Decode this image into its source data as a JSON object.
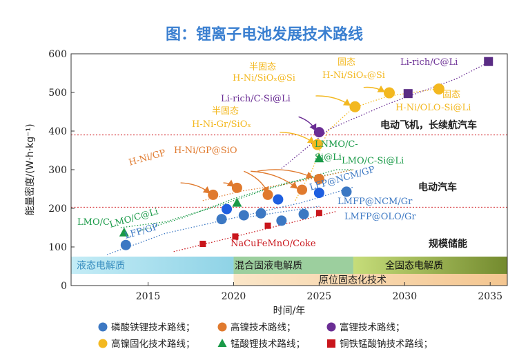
{
  "chart_data": {
    "type": "scatter",
    "title": "图：锂离子电池发展技术路线",
    "xlabel": "时间/年",
    "ylabel": "能量密度/(W·h·kg⁻¹)",
    "xlim": [
      2010.5,
      2036
    ],
    "ylim": [
      0,
      600
    ],
    "xticks": [
      2015,
      2020,
      2025,
      2030,
      2035
    ],
    "yticks": [
      0,
      100,
      200,
      300,
      400,
      500,
      600
    ],
    "grid": false,
    "reference_lines": [
      {
        "y": 390,
        "label": "电动飞机，长续航汽车"
      },
      {
        "y": 203,
        "label": "电动汽车"
      }
    ],
    "application_labels": [
      {
        "label": "电动飞机，长续航汽车"
      },
      {
        "label": "电动汽车"
      },
      {
        "label": "规模储能"
      }
    ],
    "series": [
      {
        "name": "磷酸铁锂技术路线",
        "marker": "circle",
        "color": "#3c78c3",
        "points": [
          [
            2013.7,
            105
          ],
          [
            2019.3,
            172
          ],
          [
            2020.6,
            182
          ],
          [
            2021.6,
            187
          ],
          [
            2022.8,
            168
          ],
          [
            2024.1,
            185
          ],
          [
            2026.6,
            243
          ]
        ]
      },
      {
        "name": "高镍技术路线",
        "marker": "circle",
        "color": "#e07a2e",
        "points": [
          [
            2018.8,
            235
          ],
          [
            2020.2,
            253
          ],
          [
            2022.0,
            235
          ],
          [
            2024.0,
            248
          ],
          [
            2025.0,
            276
          ]
        ]
      },
      {
        "name": "富锂技术路线",
        "marker": "circle",
        "color": "#6a2d94",
        "points": [
          [
            2025.0,
            397
          ]
        ]
      },
      {
        "name": "高镍固化技术路线",
        "marker": "circle",
        "color": "#f3b820",
        "points": [
          [
            2024.9,
            365
          ],
          [
            2027.1,
            463
          ],
          [
            2029.1,
            499
          ],
          [
            2032.0,
            509
          ]
        ]
      },
      {
        "name": "锰酸锂技术路线",
        "marker": "triangle",
        "color": "#1a9a48",
        "points": [
          [
            2013.6,
            138
          ],
          [
            2020.2,
            215
          ],
          [
            2025.0,
            330
          ]
        ]
      },
      {
        "name": "铜铁锰酸钠技术路线",
        "marker": "square",
        "color": "#c9161c",
        "points": [
          [
            2018.2,
            108
          ],
          [
            2020.1,
            127
          ],
          [
            2022.0,
            155
          ],
          [
            2025.0,
            188
          ]
        ]
      },
      {
        "name": "富锂（方块）",
        "marker": "square",
        "color": "#5a2c84",
        "points": [
          [
            2030.2,
            497
          ],
          [
            2034.9,
            580
          ]
        ]
      },
      {
        "name": "磷酸铁锂（高亮）",
        "marker": "circle",
        "color": "#1e5fe0",
        "points": [
          [
            2019.6,
            198
          ],
          [
            2022.6,
            223
          ],
          [
            2025.0,
            240
          ]
        ]
      }
    ],
    "annotations": [
      {
        "text": "LMO/C",
        "color": "#1a9a48"
      },
      {
        "text": "LMO/C@Li",
        "color": "#1a9a48"
      },
      {
        "text": "LFP/GP",
        "color": "#3c78c3"
      },
      {
        "text": "H-Ni/GP",
        "color": "#e07a2e"
      },
      {
        "text": "H-Ni/GP@SiO",
        "color": "#e07a2e"
      },
      {
        "text": "半固态",
        "color": "#f3b820"
      },
      {
        "text": "H-Ni-Gr/SiOₓ",
        "color": "#f3b820"
      },
      {
        "text": "Li-rich/C-Si@Li",
        "color": "#6a2d94"
      },
      {
        "text": "半固态",
        "color": "#f3b820"
      },
      {
        "text": "H-Ni/SiOₓ@Si",
        "color": "#f3b820"
      },
      {
        "text": "固态",
        "color": "#f3b820"
      },
      {
        "text": "H-Ni/SiOₓ@Si",
        "color": "#f3b820"
      },
      {
        "text": "Li-rich/C@Li",
        "color": "#6a2d94"
      },
      {
        "text": "固态",
        "color": "#f3b820"
      },
      {
        "text": "H-Ni/OLO-Si@Li",
        "color": "#f3b820"
      },
      {
        "text": "LNMO/C-",
        "color": "#1a9a48"
      },
      {
        "text": "Si@Li",
        "color": "#1a9a48"
      },
      {
        "text": "LMO/C-Si@Li",
        "color": "#1a9a48"
      },
      {
        "text": "LFP@NCM/GP",
        "color": "#3c78c3"
      },
      {
        "text": "LMFP@NCM/Gr",
        "color": "#3c78c3"
      },
      {
        "text": "LMFP@OLO/Gr",
        "color": "#3c78c3"
      },
      {
        "text": "NaCuFeMnO/Coke",
        "color": "#c9161c"
      }
    ],
    "bands": [
      {
        "label": "液态电解质",
        "from": 2010.5,
        "to": 2020.0,
        "color": "#a8dcea"
      },
      {
        "label": "混合固液电解质",
        "from": 2020.0,
        "to": 2027.0,
        "color": "#9ccf9e"
      },
      {
        "label": "全固态电解质",
        "from": 2027.0,
        "to": 2036.0,
        "color": "#90a83f"
      },
      {
        "label": "原位固态化技术",
        "from": 2020.0,
        "to": 2036.0,
        "color": "#f7dcb4"
      }
    ],
    "legend": {
      "placement": "bottom",
      "items": [
        {
          "label": "磷酸铁锂技术路线；",
          "marker": "circle",
          "color": "#3c78c3"
        },
        {
          "label": "高镍技术路线；",
          "marker": "circle",
          "color": "#e07a2e"
        },
        {
          "label": "富锂技术路线；",
          "marker": "circle",
          "color": "#6a2d94"
        },
        {
          "label": "高镍固化技术路线；",
          "marker": "circle",
          "color": "#f3b820"
        },
        {
          "label": "锰酸锂技术路线；",
          "marker": "triangle",
          "color": "#1a9a48"
        },
        {
          "label": "铜铁锰酸钠技术路线；",
          "marker": "square",
          "color": "#c9161c"
        }
      ]
    }
  }
}
